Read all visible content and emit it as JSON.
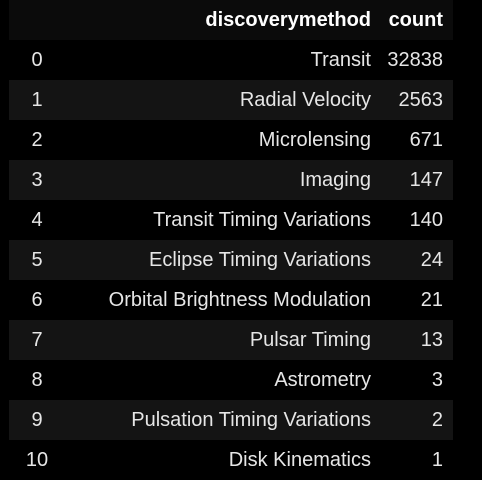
{
  "table": {
    "columns": [
      "",
      "discoverymethod",
      "count"
    ],
    "rows": [
      {
        "index": "0",
        "discoverymethod": "Transit",
        "count": "32838"
      },
      {
        "index": "1",
        "discoverymethod": "Radial Velocity",
        "count": "2563"
      },
      {
        "index": "2",
        "discoverymethod": "Microlensing",
        "count": "671"
      },
      {
        "index": "3",
        "discoverymethod": "Imaging",
        "count": "147"
      },
      {
        "index": "4",
        "discoverymethod": "Transit Timing Variations",
        "count": "140"
      },
      {
        "index": "5",
        "discoverymethod": "Eclipse Timing Variations",
        "count": "24"
      },
      {
        "index": "6",
        "discoverymethod": "Orbital Brightness Modulation",
        "count": "21"
      },
      {
        "index": "7",
        "discoverymethod": "Pulsar Timing",
        "count": "13"
      },
      {
        "index": "8",
        "discoverymethod": "Astrometry",
        "count": "3"
      },
      {
        "index": "9",
        "discoverymethod": "Pulsation Timing Variations",
        "count": "2"
      },
      {
        "index": "10",
        "discoverymethod": "Disk Kinematics",
        "count": "1"
      }
    ]
  },
  "colors": {
    "background": "#000000",
    "row_alt": "#141414",
    "header_bg": "#0b0b0b",
    "text": "#e6e6e6"
  }
}
